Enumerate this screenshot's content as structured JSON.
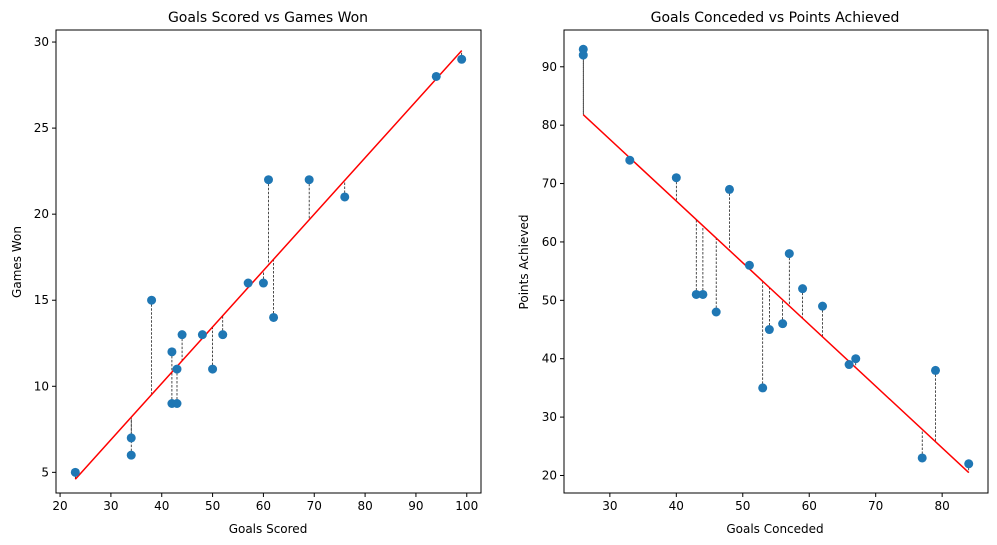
{
  "chart_data": [
    {
      "type": "scatter",
      "title": "Goals Scored vs Games Won",
      "xlabel": "Goals Scored",
      "ylabel": "Games Won",
      "xlim": [
        19.2,
        102.8
      ],
      "ylim": [
        3.8,
        30.7
      ],
      "xticks": [
        20,
        30,
        40,
        50,
        60,
        70,
        80,
        90,
        100
      ],
      "yticks": [
        5,
        10,
        15,
        20,
        25,
        30
      ],
      "grid": false,
      "point_color": "#1f77b4",
      "line_color": "#ff0000",
      "points": [
        {
          "x": 23,
          "y": 5
        },
        {
          "x": 34,
          "y": 7
        },
        {
          "x": 34,
          "y": 6
        },
        {
          "x": 38,
          "y": 15
        },
        {
          "x": 42,
          "y": 12
        },
        {
          "x": 42,
          "y": 9
        },
        {
          "x": 43,
          "y": 11
        },
        {
          "x": 43,
          "y": 9
        },
        {
          "x": 44,
          "y": 13
        },
        {
          "x": 48,
          "y": 13
        },
        {
          "x": 50,
          "y": 11
        },
        {
          "x": 52,
          "y": 13
        },
        {
          "x": 57,
          "y": 16
        },
        {
          "x": 60,
          "y": 16
        },
        {
          "x": 61,
          "y": 22
        },
        {
          "x": 62,
          "y": 14
        },
        {
          "x": 69,
          "y": 22
        },
        {
          "x": 76,
          "y": 21
        },
        {
          "x": 94,
          "y": 28
        },
        {
          "x": 99,
          "y": 29
        }
      ],
      "fit_line": {
        "x": [
          23,
          99
        ],
        "y": [
          4.6,
          29.5
        ]
      }
    },
    {
      "type": "scatter",
      "title": "Goals Conceded vs Points Achieved",
      "xlabel": "Goals Conceded",
      "ylabel": "Points Achieved",
      "xlim": [
        23.1,
        86.9
      ],
      "ylim": [
        17.0,
        96.3
      ],
      "xticks": [
        30,
        40,
        50,
        60,
        70,
        80
      ],
      "yticks": [
        20,
        30,
        40,
        50,
        60,
        70,
        80,
        90
      ],
      "grid": false,
      "point_color": "#1f77b4",
      "line_color": "#ff0000",
      "points": [
        {
          "x": 26,
          "y": 93
        },
        {
          "x": 26,
          "y": 92
        },
        {
          "x": 33,
          "y": 74
        },
        {
          "x": 40,
          "y": 71
        },
        {
          "x": 43,
          "y": 51
        },
        {
          "x": 44,
          "y": 51
        },
        {
          "x": 46,
          "y": 48
        },
        {
          "x": 48,
          "y": 69
        },
        {
          "x": 51,
          "y": 56
        },
        {
          "x": 53,
          "y": 35
        },
        {
          "x": 54,
          "y": 45
        },
        {
          "x": 56,
          "y": 46
        },
        {
          "x": 57,
          "y": 58
        },
        {
          "x": 59,
          "y": 52
        },
        {
          "x": 62,
          "y": 49
        },
        {
          "x": 66,
          "y": 39
        },
        {
          "x": 67,
          "y": 40
        },
        {
          "x": 77,
          "y": 23
        },
        {
          "x": 79,
          "y": 38
        },
        {
          "x": 84,
          "y": 22
        }
      ],
      "fit_line": {
        "x": [
          26,
          84
        ],
        "y": [
          81.8,
          20.5
        ]
      }
    }
  ]
}
